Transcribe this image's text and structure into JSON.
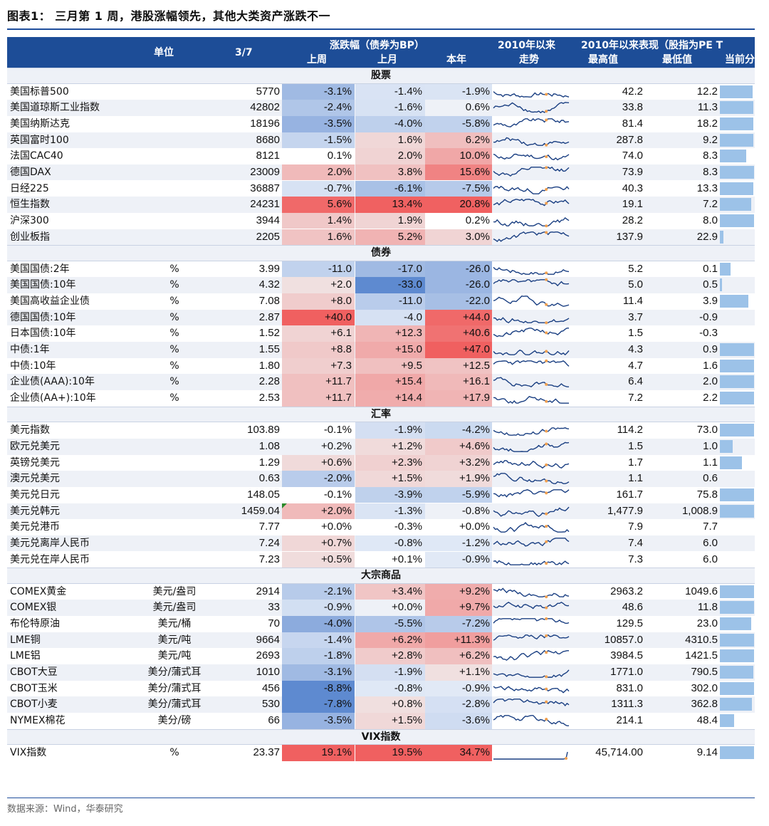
{
  "title": "图表1：  三月第 1 周，港股涨幅领先，其他大类资产涨跌不一",
  "header": {
    "unit": "单位",
    "date": "3/7",
    "change_group": "涨跌幅（债券为BP）",
    "last_week": "上周",
    "last_month": "上月",
    "ytd": "本年",
    "trend_group": "2010年以来",
    "trend": "走势",
    "perf_group": "2010年以来表现（股指为PE T",
    "max": "最高值",
    "min": "最低值",
    "current": "当前分"
  },
  "colors": {
    "header_bg": "#1d4d97",
    "strong_pos": "#f06060",
    "strong_neg": "#5e8ad0",
    "sparkline": "#1a3f82",
    "sparkline_marker": "#f0a050",
    "bar": "#9cc2e8"
  },
  "sections": [
    {
      "label": "股票",
      "rows": [
        {
          "name": "美国标普500",
          "unit": "",
          "value": "5770",
          "wk": "-3.1%",
          "mo": "-1.4%",
          "yr": "-1.9%",
          "max": "42.2",
          "min": "12.2",
          "pct": 0.94
        },
        {
          "name": "美国道琼斯工业指数",
          "unit": "",
          "value": "42802",
          "wk": "-2.4%",
          "mo": "-1.6%",
          "yr": "0.6%",
          "max": "33.8",
          "min": "11.3",
          "pct": 0.96
        },
        {
          "name": "美国纳斯达克",
          "unit": "",
          "value": "18196",
          "wk": "-3.5%",
          "mo": "-4.0%",
          "yr": "-5.8%",
          "max": "81.4",
          "min": "18.2",
          "pct": 0.96
        },
        {
          "name": "英国富时100",
          "unit": "",
          "value": "8680",
          "wk": "-1.5%",
          "mo": "1.6%",
          "yr": "6.2%",
          "max": "287.8",
          "min": "9.2",
          "pct": 0.96
        },
        {
          "name": "法国CAC40",
          "unit": "",
          "value": "8121",
          "wk": "0.1%",
          "mo": "2.0%",
          "yr": "10.0%",
          "max": "74.0",
          "min": "8.3",
          "pct": 0.76
        },
        {
          "name": "德国DAX",
          "unit": "",
          "value": "23009",
          "wk": "2.0%",
          "mo": "3.8%",
          "yr": "15.6%",
          "max": "73.9",
          "min": "8.3",
          "pct": 0.98
        },
        {
          "name": "日经225",
          "unit": "",
          "value": "36887",
          "wk": "-0.7%",
          "mo": "-6.1%",
          "yr": "-7.5%",
          "max": "40.3",
          "min": "13.3",
          "pct": 0.96
        },
        {
          "name": "恒生指数",
          "unit": "",
          "value": "24231",
          "wk": "5.6%",
          "mo": "13.4%",
          "yr": "20.8%",
          "max": "19.1",
          "min": "7.2",
          "pct": 0.9
        },
        {
          "name": "沪深300",
          "unit": "",
          "value": "3944",
          "wk": "1.4%",
          "mo": "1.9%",
          "yr": "0.2%",
          "max": "28.2",
          "min": "8.0",
          "pct": 0.98
        },
        {
          "name": "创业板指",
          "unit": "",
          "value": "2205",
          "wk": "1.6%",
          "mo": "5.2%",
          "yr": "3.0%",
          "max": "137.9",
          "min": "22.9",
          "pct": 0.1
        }
      ]
    },
    {
      "label": "债券",
      "rows": [
        {
          "name": "美国国债:2年",
          "unit": "%",
          "value": "3.99",
          "wk": "-11.0",
          "mo": "-17.0",
          "yr": "-26.0",
          "max": "5.2",
          "min": "0.1",
          "pct": 0.3
        },
        {
          "name": "美国国债:10年",
          "unit": "%",
          "value": "4.32",
          "wk": "+2.0",
          "mo": "-33.0",
          "yr": "-26.0",
          "max": "5.0",
          "min": "0.5",
          "pct": 0.06
        },
        {
          "name": "美国高收益企业债",
          "unit": "%",
          "value": "7.08",
          "wk": "+8.0",
          "mo": "-11.0",
          "yr": "-22.0",
          "max": "11.4",
          "min": "3.9",
          "pct": 0.82
        },
        {
          "name": "德国国债:10年",
          "unit": "%",
          "value": "2.87",
          "wk": "+40.0",
          "mo": "-4.0",
          "yr": "+44.0",
          "max": "3.7",
          "min": "-0.9",
          "pct": 0.0
        },
        {
          "name": "日本国债:10年",
          "unit": "%",
          "value": "1.52",
          "wk": "+6.1",
          "mo": "+12.3",
          "yr": "+40.6",
          "max": "1.5",
          "min": "-0.3",
          "pct": 0.0
        },
        {
          "name": "中债:1年",
          "unit": "%",
          "value": "1.55",
          "wk": "+8.8",
          "mo": "+15.0",
          "yr": "+47.0",
          "max": "4.3",
          "min": "0.9",
          "pct": 0.98
        },
        {
          "name": "中债:10年",
          "unit": "%",
          "value": "1.80",
          "wk": "+7.3",
          "mo": "+9.5",
          "yr": "+12.5",
          "max": "4.7",
          "min": "1.6",
          "pct": 0.98
        },
        {
          "name": "企业债(AAA):10年",
          "unit": "%",
          "value": "2.28",
          "wk": "+11.7",
          "mo": "+15.4",
          "yr": "+16.1",
          "max": "6.4",
          "min": "2.0",
          "pct": 0.98
        },
        {
          "name": "企业债(AA+):10年",
          "unit": "%",
          "value": "2.53",
          "wk": "+11.7",
          "mo": "+14.4",
          "yr": "+17.9",
          "max": "7.2",
          "min": "2.2",
          "pct": 0.98
        }
      ]
    },
    {
      "label": "汇率",
      "rows": [
        {
          "name": "美元指数",
          "unit": "",
          "value": "103.89",
          "wk": "-0.1%",
          "mo": "-1.9%",
          "yr": "-4.2%",
          "max": "114.2",
          "min": "73.0",
          "pct": 0.98
        },
        {
          "name": "欧元兑美元",
          "unit": "",
          "value": "1.08",
          "wk": "+0.2%",
          "mo": "+1.2%",
          "yr": "+4.6%",
          "max": "1.5",
          "min": "1.0",
          "pct": 0.36
        },
        {
          "name": "英镑兑美元",
          "unit": "",
          "value": "1.29",
          "wk": "+0.6%",
          "mo": "+2.3%",
          "yr": "+3.2%",
          "max": "1.7",
          "min": "1.1",
          "pct": 0.64
        },
        {
          "name": "澳元兑美元",
          "unit": "",
          "value": "0.63",
          "wk": "-2.0%",
          "mo": "+1.5%",
          "yr": "+1.9%",
          "max": "1.1",
          "min": "0.6",
          "pct": 0.0
        },
        {
          "name": "美元兑日元",
          "unit": "",
          "value": "148.05",
          "wk": "-0.1%",
          "mo": "-3.9%",
          "yr": "-5.9%",
          "max": "161.7",
          "min": "75.8",
          "pct": 0.98
        },
        {
          "name": "美元兑韩元",
          "unit": "",
          "value": "1459.04",
          "wk": "+2.0%",
          "mo": "-1.3%",
          "yr": "-0.8%",
          "max": "1,477.9",
          "min": "1,008.9",
          "pct": 0.98
        },
        {
          "name": "美元兑港币",
          "unit": "",
          "value": "7.77",
          "wk": "+0.0%",
          "mo": "-0.3%",
          "yr": "+0.0%",
          "max": "7.9",
          "min": "7.7",
          "pct": 0.0
        },
        {
          "name": "美元兑离岸人民币",
          "unit": "",
          "value": "7.24",
          "wk": "+0.7%",
          "mo": "-0.8%",
          "yr": "-1.2%",
          "max": "7.4",
          "min": "6.0",
          "pct": 0.0
        },
        {
          "name": "美元兑在岸人民币",
          "unit": "",
          "value": "7.23",
          "wk": "+0.5%",
          "mo": "+0.1%",
          "yr": "-0.9%",
          "max": "7.3",
          "min": "6.0",
          "pct": 0.0
        }
      ]
    },
    {
      "label": "大宗商品",
      "rows": [
        {
          "name": "COMEX黄金",
          "unit": "美元/盎司",
          "value": "2914",
          "wk": "-2.1%",
          "mo": "+3.4%",
          "yr": "+9.2%",
          "max": "2963.2",
          "min": "1049.6",
          "pct": 0.98
        },
        {
          "name": "COMEX银",
          "unit": "美元/盎司",
          "value": "33",
          "wk": "-0.9%",
          "mo": "+0.0%",
          "yr": "+9.7%",
          "max": "48.6",
          "min": "11.8",
          "pct": 0.98
        },
        {
          "name": "布伦特原油",
          "unit": "美元/桶",
          "value": "70",
          "wk": "-4.0%",
          "mo": "-5.5%",
          "yr": "-7.2%",
          "max": "129.5",
          "min": "23.0",
          "pct": 0.9
        },
        {
          "name": "LME铜",
          "unit": "美元/吨",
          "value": "9664",
          "wk": "-1.4%",
          "mo": "+6.2%",
          "yr": "+11.3%",
          "max": "10857.0",
          "min": "4310.5",
          "pct": 0.98
        },
        {
          "name": "LME铝",
          "unit": "美元/吨",
          "value": "2693",
          "wk": "-1.8%",
          "mo": "+2.8%",
          "yr": "+6.2%",
          "max": "3984.5",
          "min": "1421.5",
          "pct": 0.98
        },
        {
          "name": "CBOT大豆",
          "unit": "美分/蒲式耳",
          "value": "1010",
          "wk": "-3.1%",
          "mo": "-1.9%",
          "yr": "+1.1%",
          "max": "1771.0",
          "min": "790.5",
          "pct": 0.96
        },
        {
          "name": "CBOT玉米",
          "unit": "美分/蒲式耳",
          "value": "456",
          "wk": "-8.8%",
          "mo": "-0.8%",
          "yr": "-0.9%",
          "max": "831.0",
          "min": "302.0",
          "pct": 0.98
        },
        {
          "name": "CBOT小麦",
          "unit": "美分/蒲式耳",
          "value": "530",
          "wk": "-7.8%",
          "mo": "+0.8%",
          "yr": "-2.8%",
          "max": "1311.3",
          "min": "362.8",
          "pct": 0.92
        },
        {
          "name": "NYMEX棉花",
          "unit": "美分/磅",
          "value": "66",
          "wk": "-3.5%",
          "mo": "+1.5%",
          "yr": "-3.6%",
          "max": "214.1",
          "min": "48.4",
          "pct": 0.4
        }
      ]
    },
    {
      "label": "VIX指数",
      "rows": [
        {
          "name": "VIX指数",
          "unit": "%",
          "value": "23.37",
          "wk": "19.1%",
          "mo": "19.5%",
          "yr": "34.7%",
          "max": "45,714.00",
          "min": "9.14",
          "pct": 0.98
        }
      ]
    }
  ],
  "source": "数据来源：Wind，华泰研究"
}
